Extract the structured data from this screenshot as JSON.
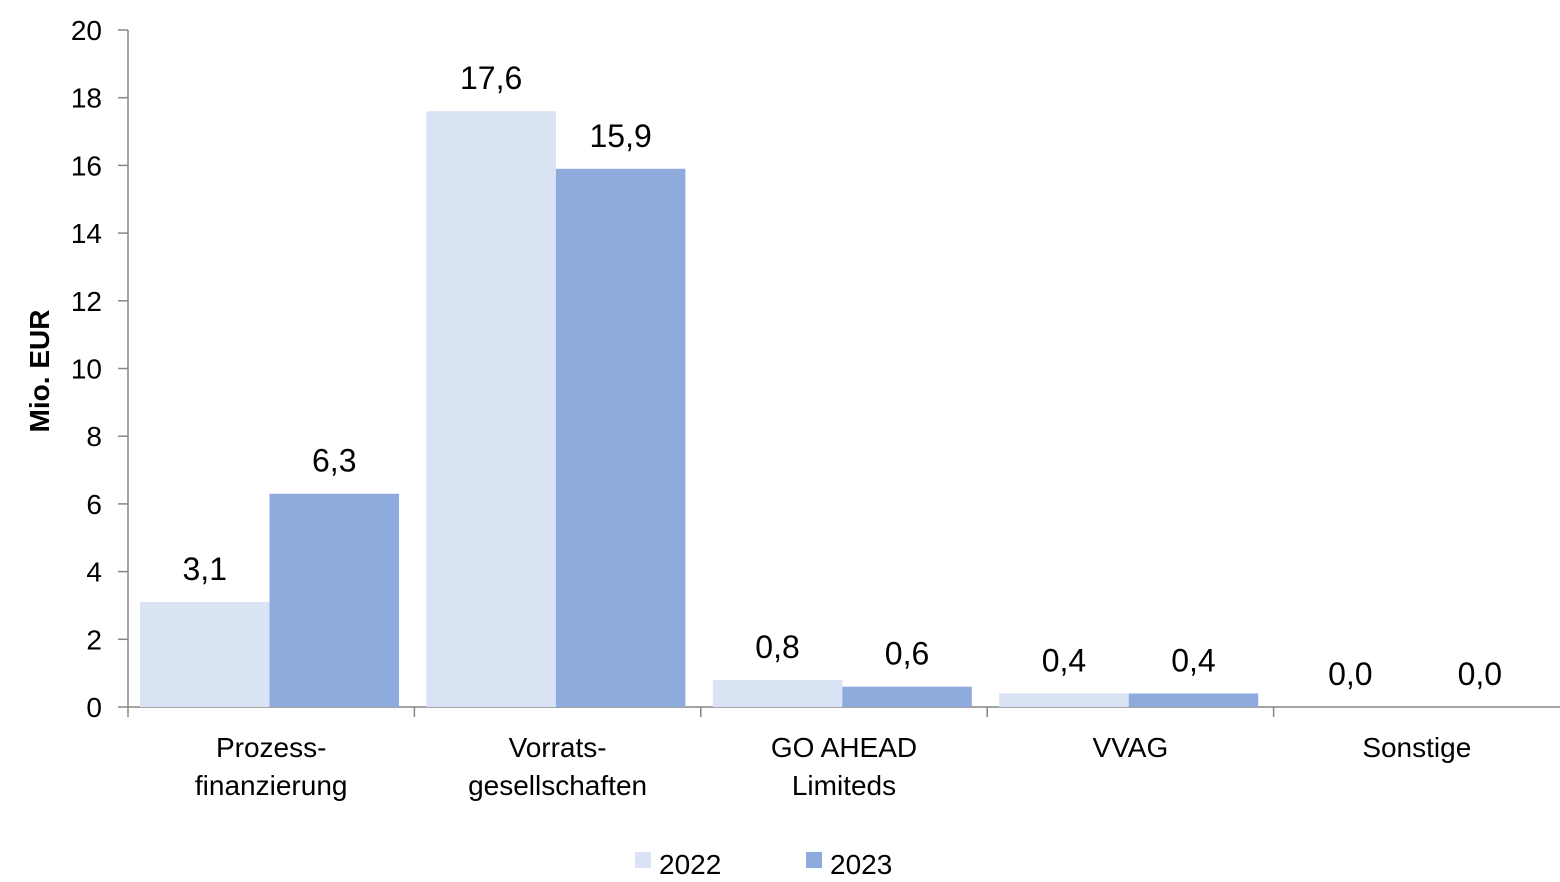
{
  "chart_data": {
    "type": "bar",
    "title": "",
    "xlabel": "",
    "ylabel": "Mio. EUR",
    "ylim": [
      0,
      20
    ],
    "yticks": [
      0,
      2,
      4,
      6,
      8,
      10,
      12,
      14,
      16,
      18,
      20
    ],
    "categories": [
      [
        "Prozess-",
        "finanzierung"
      ],
      [
        "Vorrats-",
        "gesellschaften"
      ],
      [
        "GO AHEAD",
        "Limiteds"
      ],
      [
        "VVAG"
      ],
      [
        "Sonstige"
      ]
    ],
    "series": [
      {
        "name": "2022",
        "color": "#dae3f3",
        "values": [
          3.1,
          17.6,
          0.8,
          0.4,
          0.0
        ],
        "labels": [
          "3,1",
          "17,6",
          "0,8",
          "0,4",
          "0,0"
        ]
      },
      {
        "name": "2023",
        "color": "#8faadc",
        "values": [
          6.3,
          15.9,
          0.6,
          0.4,
          0.0
        ],
        "labels": [
          "6,3",
          "15,9",
          "0,6",
          "0,4",
          "0,0"
        ]
      }
    ],
    "legend": "bottom",
    "grid": false
  }
}
